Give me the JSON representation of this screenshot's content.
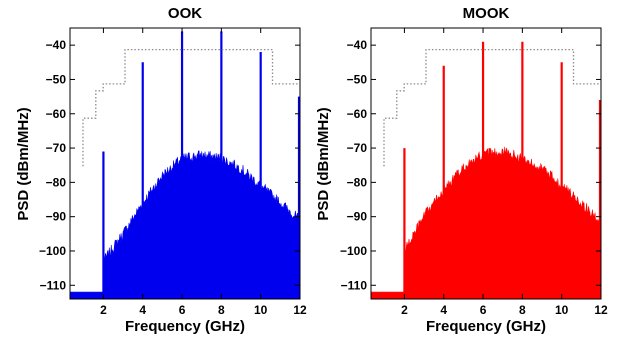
{
  "chart_data": [
    {
      "type": "area",
      "title": "OOK",
      "xlabel": "Frequency (GHz)",
      "ylabel": "PSD (dBm/MHz)",
      "xlim": [
        0.3,
        12
      ],
      "ylim": [
        -114,
        -35
      ],
      "xticks": [
        2,
        4,
        6,
        8,
        10,
        12
      ],
      "yticks": [
        -40,
        -50,
        -60,
        -70,
        -80,
        -90,
        -100,
        -110
      ],
      "grid": false,
      "color": "#0000ee",
      "mask_color": "#8c8c8c",
      "spectrum": {
        "noise_floor": -112,
        "envelope": [
          [
            2.0,
            -103
          ],
          [
            3.0,
            -95
          ],
          [
            4.0,
            -86
          ],
          [
            5.0,
            -78
          ],
          [
            6.0,
            -73
          ],
          [
            7.0,
            -72
          ],
          [
            8.0,
            -73
          ],
          [
            9.0,
            -76
          ],
          [
            10.0,
            -81
          ],
          [
            11.0,
            -86
          ],
          [
            12.0,
            -91
          ]
        ]
      },
      "spectral_lines": [
        {
          "x": 2,
          "y": -71
        },
        {
          "x": 4,
          "y": -45
        },
        {
          "x": 6,
          "y": -36
        },
        {
          "x": 8,
          "y": -36
        },
        {
          "x": 10,
          "y": -42
        },
        {
          "x": 12,
          "y": -55
        }
      ],
      "emission_mask": [
        [
          0.96,
          -75.3
        ],
        [
          0.96,
          -61.3
        ],
        [
          1.61,
          -61.3
        ],
        [
          1.61,
          -53.3
        ],
        [
          1.99,
          -53.3
        ],
        [
          1.99,
          -51.3
        ],
        [
          3.1,
          -51.3
        ],
        [
          3.1,
          -41.3
        ],
        [
          10.6,
          -41.3
        ],
        [
          10.6,
          -51.3
        ],
        [
          12,
          -51.3
        ]
      ]
    },
    {
      "type": "area",
      "title": "MOOK",
      "xlabel": "Frequency (GHz)",
      "ylabel": "PSD (dBm/MHz)",
      "xlim": [
        0.3,
        12
      ],
      "ylim": [
        -114,
        -35
      ],
      "xticks": [
        2,
        4,
        6,
        8,
        10,
        12
      ],
      "yticks": [
        -40,
        -50,
        -60,
        -70,
        -80,
        -90,
        -100,
        -110
      ],
      "grid": false,
      "color": "#ff0000",
      "mask_color": "#8c8c8c",
      "spectrum": {
        "noise_floor": -112,
        "envelope": [
          [
            2.0,
            -100
          ],
          [
            3.0,
            -90
          ],
          [
            4.0,
            -82
          ],
          [
            5.0,
            -76
          ],
          [
            6.0,
            -72
          ],
          [
            7.0,
            -71
          ],
          [
            8.0,
            -73
          ],
          [
            9.0,
            -76
          ],
          [
            10.0,
            -81
          ],
          [
            11.0,
            -86
          ],
          [
            12.0,
            -92
          ]
        ]
      },
      "spectral_lines": [
        {
          "x": 2,
          "y": -70
        },
        {
          "x": 4,
          "y": -46
        },
        {
          "x": 6,
          "y": -39
        },
        {
          "x": 8,
          "y": -39
        },
        {
          "x": 10,
          "y": -45
        },
        {
          "x": 12,
          "y": -56
        }
      ],
      "emission_mask": [
        [
          0.96,
          -75.3
        ],
        [
          0.96,
          -61.3
        ],
        [
          1.61,
          -61.3
        ],
        [
          1.61,
          -53.3
        ],
        [
          1.99,
          -53.3
        ],
        [
          1.99,
          -51.3
        ],
        [
          3.1,
          -51.3
        ],
        [
          3.1,
          -41.3
        ],
        [
          10.6,
          -41.3
        ],
        [
          10.6,
          -51.3
        ],
        [
          12,
          -51.3
        ]
      ]
    }
  ]
}
